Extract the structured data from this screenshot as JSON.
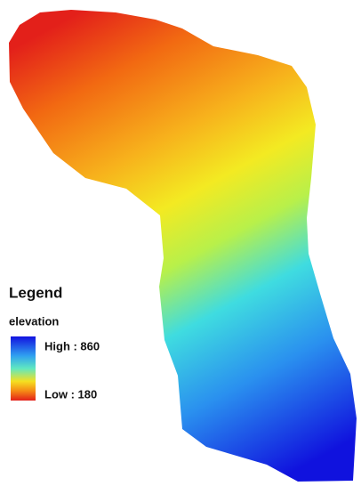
{
  "legend": {
    "title": "Legend",
    "layer": "elevation",
    "high": "High : 860",
    "low": "Low : 180"
  }
}
